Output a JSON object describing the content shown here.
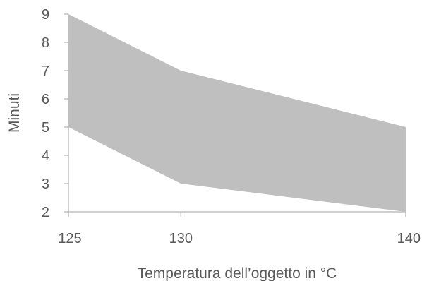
{
  "chart_data": {
    "type": "area",
    "title": "",
    "xlabel": "Temperatura dell’oggetto in °C",
    "ylabel": "Minuti",
    "x": [
      125,
      130,
      140
    ],
    "x_tick_labels": [
      "125",
      "130",
      "140"
    ],
    "ylim": [
      2,
      9
    ],
    "y_ticks": [
      2,
      3,
      4,
      5,
      6,
      7,
      8,
      9
    ],
    "band": {
      "lower": [
        5,
        3,
        2
      ],
      "upper": [
        9,
        7,
        5
      ]
    },
    "grid": false,
    "legend": "none",
    "colors": {
      "band_fill": "#bfbfbf",
      "axis": "#bfbfbf",
      "text": "#595959"
    }
  }
}
